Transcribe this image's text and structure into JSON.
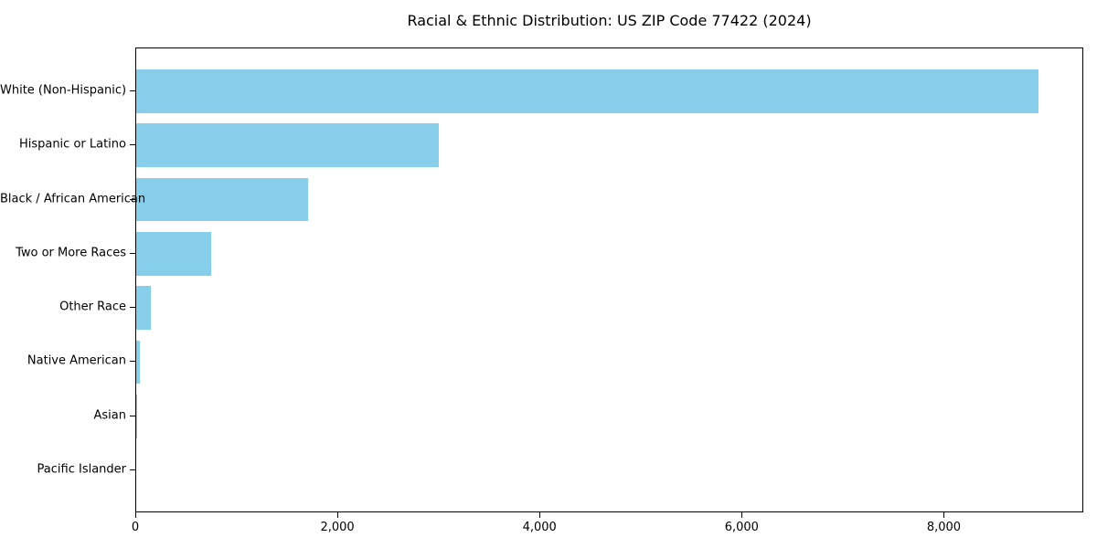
{
  "chart_data": {
    "type": "bar",
    "orientation": "horizontal",
    "title": "Racial & Ethnic Distribution: US ZIP Code 77422 (2024)",
    "categories": [
      "White (Non-Hispanic)",
      "Hispanic or Latino",
      "Black / African American",
      "Two or More Races",
      "Other Race",
      "Native American",
      "Asian",
      "Pacific Islander"
    ],
    "values": [
      8930,
      2990,
      1700,
      740,
      145,
      36,
      10,
      0
    ],
    "xlabel": "",
    "ylabel": "",
    "xlim": [
      0,
      9380
    ],
    "xticks": [
      0,
      2000,
      4000,
      6000,
      8000
    ],
    "xtick_labels": [
      "0",
      "2,000",
      "4,000",
      "6,000",
      "8,000"
    ],
    "bar_color": "#87ceeb",
    "axis_color": "#000000",
    "background_color": "#ffffff",
    "grid": false,
    "legend": null,
    "categories_order": "top-to-bottom (largest first)"
  }
}
